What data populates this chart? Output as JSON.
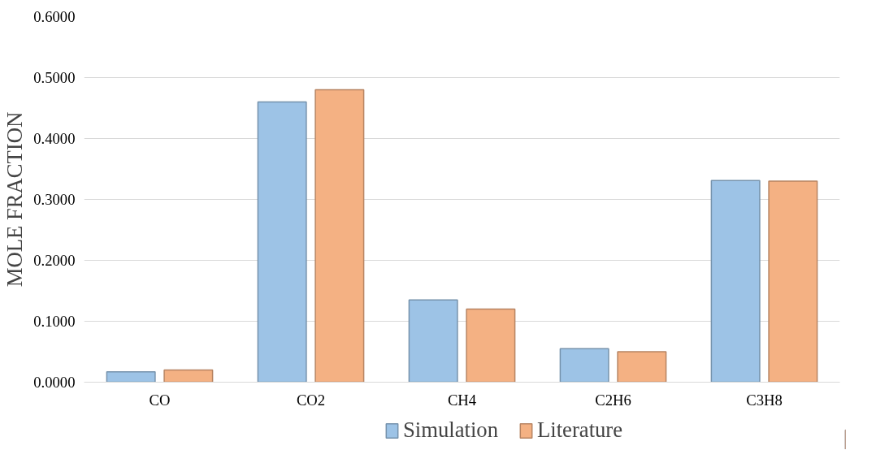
{
  "chart_data": {
    "type": "bar",
    "ylabel": "MOLE FRACTION",
    "categories": [
      "CO",
      "CO2",
      "CH4",
      "C2H6",
      "C3H8"
    ],
    "series": [
      {
        "name": "Simulation",
        "color": "#9dc3e6",
        "values": [
          0.017,
          0.46,
          0.135,
          0.055,
          0.331
        ]
      },
      {
        "name": "Literature",
        "color": "#f4b183",
        "values": [
          0.02,
          0.48,
          0.12,
          0.05,
          0.33
        ]
      }
    ],
    "ylim": [
      0,
      0.6
    ],
    "yticks": [
      {
        "value": 0,
        "label": "0.0000"
      },
      {
        "value": 0.1,
        "label": "0.1000"
      },
      {
        "value": 0.2,
        "label": "0.2000"
      },
      {
        "value": 0.3,
        "label": "0.3000"
      },
      {
        "value": 0.4,
        "label": "0.4000"
      },
      {
        "value": 0.5,
        "label": "0.5000"
      },
      {
        "value": 0.6,
        "label": "0.6000"
      }
    ],
    "grid": "y",
    "legend": "bottom"
  }
}
